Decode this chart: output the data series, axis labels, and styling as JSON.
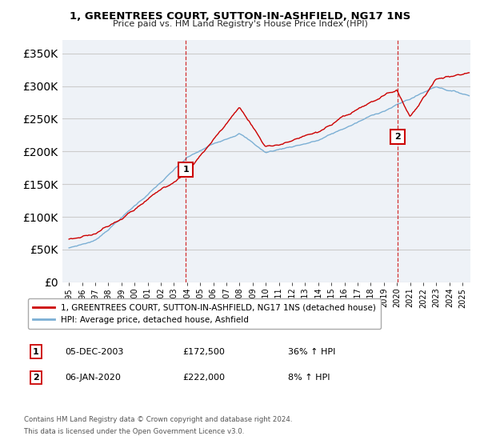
{
  "title": "1, GREENTREES COURT, SUTTON-IN-ASHFIELD, NG17 1NS",
  "subtitle": "Price paid vs. HM Land Registry's House Price Index (HPI)",
  "ylabel_values": [
    0,
    50000,
    100000,
    150000,
    200000,
    250000,
    300000,
    350000
  ],
  "ylim": [
    0,
    370000
  ],
  "xlim_start": 1994.5,
  "xlim_end": 2025.6,
  "sale1_x": 2003.92,
  "sale1_y": 172500,
  "sale2_x": 2020.04,
  "sale2_y": 222000,
  "sale1_label": "1",
  "sale2_label": "2",
  "sale1_date": "05-DEC-2003",
  "sale1_price": "£172,500",
  "sale1_hpi": "36% ↑ HPI",
  "sale2_date": "06-JAN-2020",
  "sale2_price": "£222,000",
  "sale2_hpi": "8% ↑ HPI",
  "legend_line1": "1, GREENTREES COURT, SUTTON-IN-ASHFIELD, NG17 1NS (detached house)",
  "legend_line2": "HPI: Average price, detached house, Ashfield",
  "footer1": "Contains HM Land Registry data © Crown copyright and database right 2024.",
  "footer2": "This data is licensed under the Open Government Licence v3.0.",
  "line1_color": "#cc0000",
  "line2_color": "#7bafd4",
  "bg_color": "#eef2f7",
  "grid_color": "#cccccc",
  "vline_color": "#cc0000",
  "marker_border_color": "#cc0000",
  "xtick_years": [
    1995,
    1996,
    1997,
    1998,
    1999,
    2000,
    2001,
    2002,
    2003,
    2004,
    2005,
    2006,
    2007,
    2008,
    2009,
    2010,
    2011,
    2012,
    2013,
    2014,
    2015,
    2016,
    2017,
    2018,
    2019,
    2020,
    2021,
    2022,
    2023,
    2024,
    2025
  ]
}
